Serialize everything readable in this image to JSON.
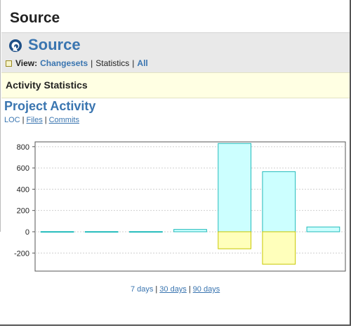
{
  "header": {
    "title": "Source"
  },
  "source_bar": {
    "title": "Source",
    "logo_icon": "source-logo-icon",
    "view_label": "View:",
    "view_options": [
      "Changesets",
      "Statistics",
      "All"
    ],
    "view_current": "Statistics"
  },
  "activity": {
    "title": "Activity Statistics"
  },
  "project_activity": {
    "title": "Project Activity",
    "metric_links": [
      "LOC",
      "Files",
      "Commits"
    ],
    "metric_current": "LOC"
  },
  "chart_data": {
    "type": "bar",
    "categories": [
      "",
      "",
      "",
      "",
      "",
      "",
      ""
    ],
    "series": [
      {
        "values": [
          2,
          2,
          2,
          22,
          830,
          565,
          45
        ],
        "color": "#ccffff",
        "stroke": "#22bbbb"
      },
      {
        "values": [
          0,
          0,
          0,
          0,
          -160,
          -305,
          0
        ],
        "color": "#ffffbb",
        "stroke": "#c8c800"
      }
    ],
    "yticks": [
      800,
      600,
      400,
      200,
      0,
      -200
    ],
    "ylim": [
      -370,
      845
    ],
    "grid": true,
    "title": "",
    "xlabel": "",
    "ylabel": ""
  },
  "range_links": {
    "options": [
      "7 days",
      "30 days",
      "90 days"
    ],
    "current": "7 days"
  }
}
